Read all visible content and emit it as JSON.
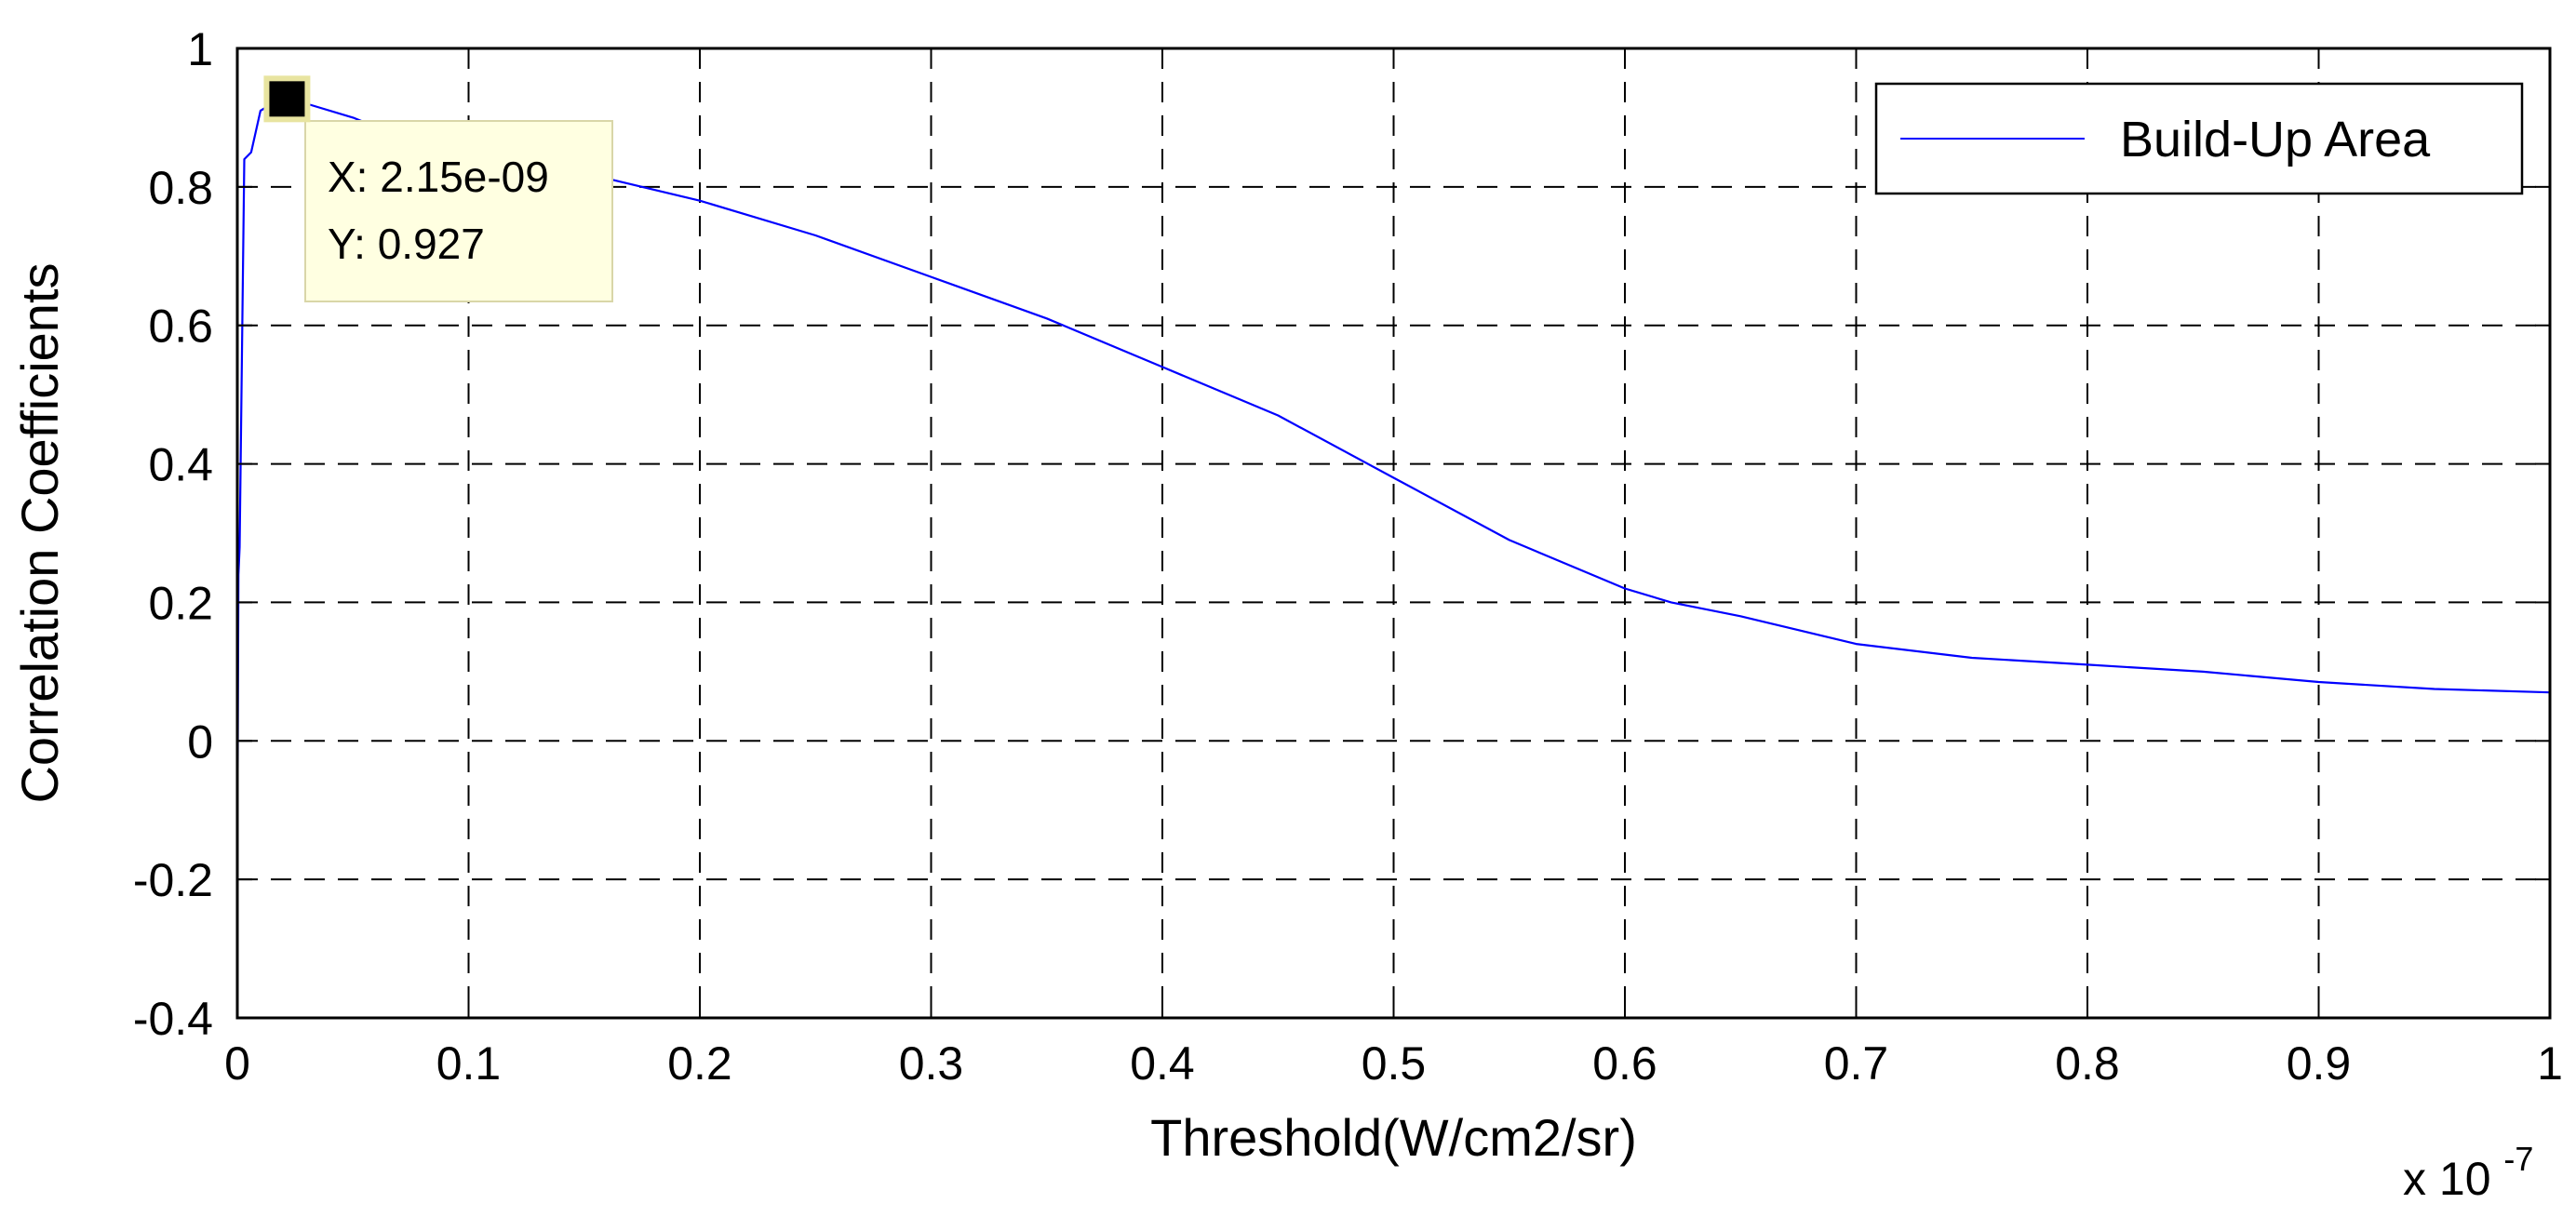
{
  "chart_data": {
    "type": "line",
    "title": "",
    "xlabel": "Threshold(W/cm2/sr)",
    "ylabel": "Correlation Coefficients",
    "x_multiplier_label": {
      "base": "x 10",
      "exponent": "-7"
    },
    "xlim": [
      0,
      1
    ],
    "ylim": [
      -0.4,
      1
    ],
    "x_ticks": [
      "0",
      "0.1",
      "0.2",
      "0.3",
      "0.4",
      "0.5",
      "0.6",
      "0.7",
      "0.8",
      "0.9",
      "1"
    ],
    "y_ticks": [
      "-0.4",
      "-0.2",
      "0",
      "0.2",
      "0.4",
      "0.6",
      "0.8",
      "1"
    ],
    "grid": true,
    "legend": {
      "placement": "top-right",
      "entries": [
        "Build-Up Area"
      ]
    },
    "series": [
      {
        "name": "Build-Up Area",
        "color": "#0000ff",
        "x": [
          0,
          0.0005,
          0.001,
          0.003,
          0.006,
          0.01,
          0.015,
          0.0215,
          0.03,
          0.05,
          0.08,
          0.1,
          0.15,
          0.2,
          0.25,
          0.3,
          0.35,
          0.4,
          0.45,
          0.5,
          0.55,
          0.6,
          0.62,
          0.65,
          0.7,
          0.75,
          0.8,
          0.85,
          0.9,
          0.95,
          1.0
        ],
        "y": [
          -0.18,
          0.24,
          0.28,
          0.84,
          0.85,
          0.91,
          0.92,
          0.927,
          0.92,
          0.9,
          0.86,
          0.84,
          0.82,
          0.78,
          0.73,
          0.67,
          0.61,
          0.54,
          0.47,
          0.38,
          0.29,
          0.22,
          0.2,
          0.18,
          0.14,
          0.12,
          0.11,
          0.1,
          0.085,
          0.075,
          0.07
        ]
      }
    ],
    "annotations": [
      {
        "type": "datatip",
        "x": 0.0215,
        "y": 0.927,
        "lines": [
          "X: 2.15e-09",
          "Y: 0.927"
        ]
      }
    ]
  },
  "colors": {
    "line": "#0000ff",
    "datatip_bg": "#ffffe1",
    "datatip_border": "#d9d6a8",
    "marker": "#000000"
  }
}
